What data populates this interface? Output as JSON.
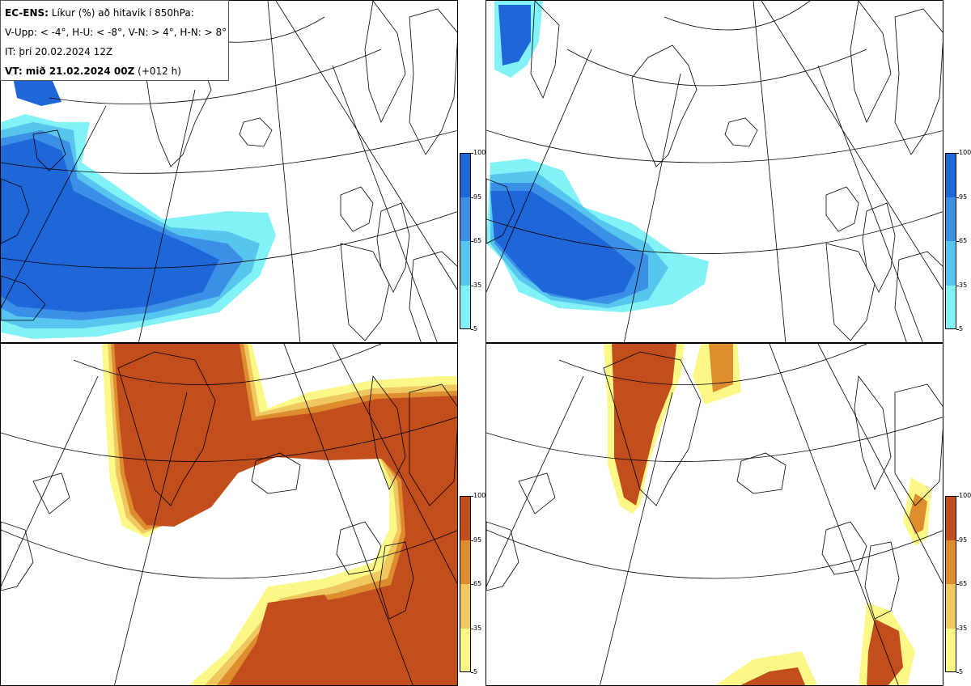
{
  "info": {
    "line1_bold": "EC-ENS:",
    "line1_rest": " Líkur (%) að hitavik í 850hPa:",
    "line2": "V-Upp: < -4°, H-U: < -8°, V-N: > 4°, H-N: > 8°",
    "line3": "IT: þri 20.02.2024 12Z",
    "line4_bold": "VT: mið 21.02.2024 00Z",
    "line4_rest": " (+012 h)"
  },
  "colorbars": {
    "ticks": [
      "100",
      "95",
      "65",
      "35",
      "5"
    ],
    "cold_colors": [
      "#1f66d8",
      "#3c8fe6",
      "#56c6ee",
      "#82f2f7"
    ],
    "warm_colors": [
      "#c24e1d",
      "#dd8c2e",
      "#f0c860",
      "#fbf888"
    ]
  },
  "panels": [
    {
      "name": "V-Upp",
      "variable": "cold anomaly < -4°",
      "palette": "cold"
    },
    {
      "name": "H-U",
      "variable": "cold anomaly < -8°",
      "palette": "cold"
    },
    {
      "name": "V-N",
      "variable": "warm anomaly > 4°",
      "palette": "warm"
    },
    {
      "name": "H-N",
      "variable": "warm anomaly > 8°",
      "palette": "warm"
    }
  ]
}
